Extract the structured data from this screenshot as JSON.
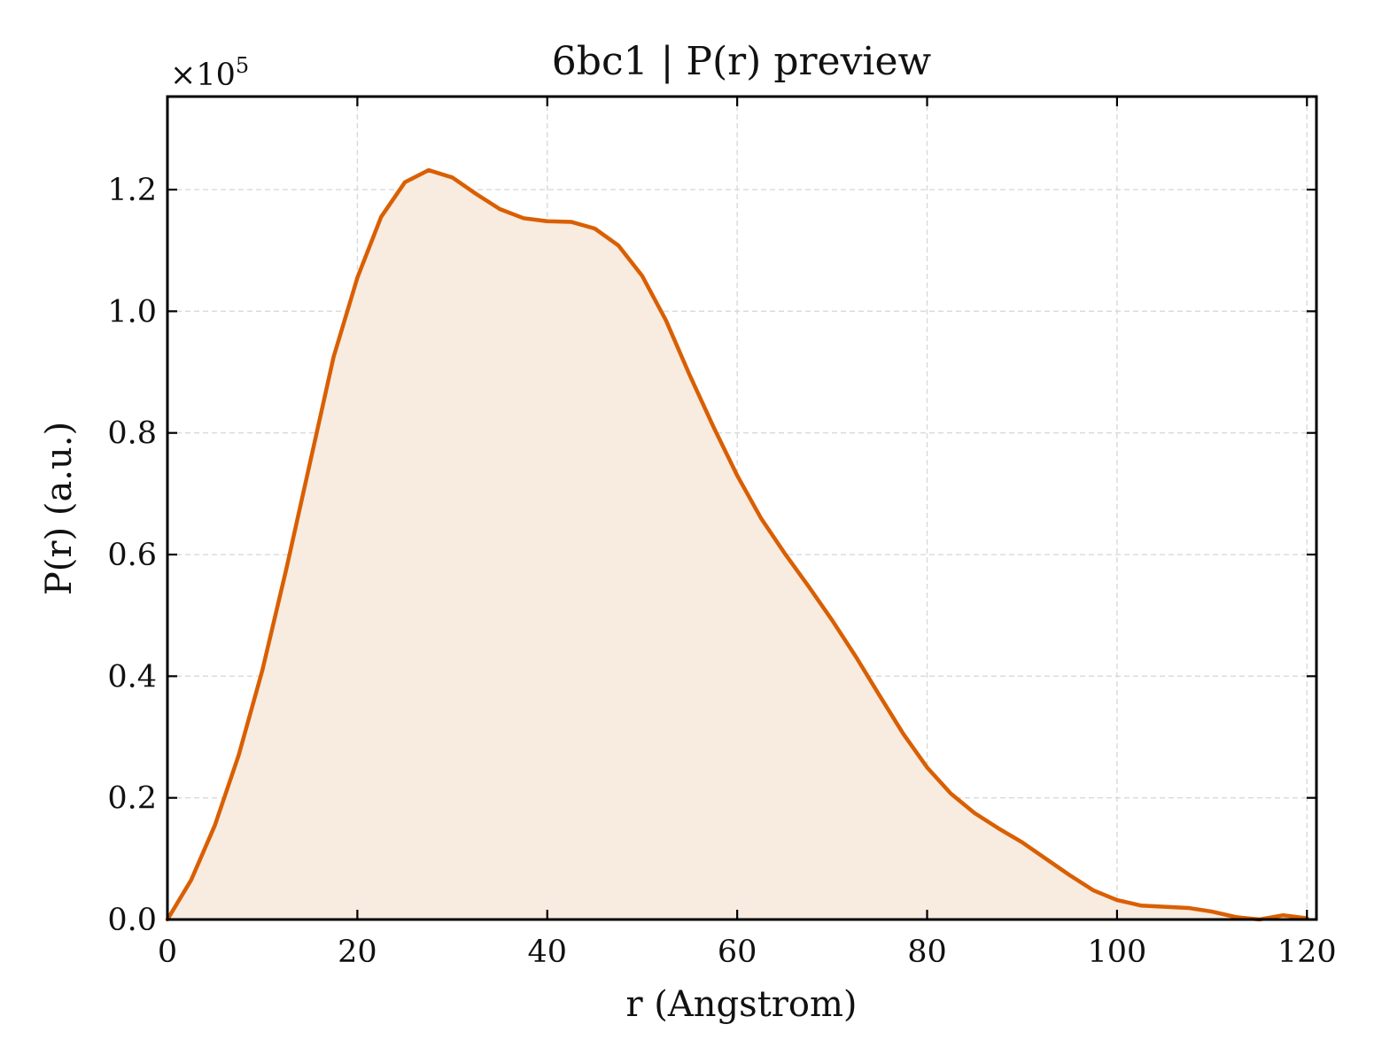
{
  "chart_data": {
    "type": "area",
    "title": "6bc1 | P(r) preview",
    "xlabel": "r (Angstrom)",
    "ylabel": "P(r) (a.u.)",
    "y_multiplier_label": "×10",
    "y_multiplier_exponent": "5",
    "xlim": [
      0,
      121
    ],
    "ylim": [
      0,
      1.353
    ],
    "x_ticks": [
      0,
      20,
      40,
      60,
      80,
      100,
      120
    ],
    "x_tick_labels": [
      "0",
      "20",
      "40",
      "60",
      "80",
      "100",
      "120"
    ],
    "y_ticks": [
      0,
      0.2,
      0.4,
      0.6,
      0.8,
      1.0,
      1.2
    ],
    "y_tick_labels": [
      "0.0",
      "0.2",
      "0.4",
      "0.6",
      "0.8",
      "1.0",
      "1.2"
    ],
    "grid": true,
    "line_color": "#d95f02",
    "fill_color": "#f8ebe0",
    "series": [
      {
        "x": [
          0,
          2.5,
          5,
          7.5,
          10,
          12.5,
          15,
          17.5,
          20,
          22.5,
          25,
          27.5,
          30,
          32.5,
          35,
          37.5,
          40,
          42.5,
          45,
          47.5,
          50,
          52.5,
          55,
          57.5,
          60,
          62.5,
          65,
          67.5,
          70,
          72.5,
          75,
          77.5,
          80,
          82.5,
          85,
          87.5,
          90,
          92.5,
          95,
          97.5,
          100,
          102.5,
          105,
          107.5,
          110,
          112.5,
          115,
          117.5,
          120
        ],
        "y": [
          0.0,
          0.065,
          0.155,
          0.27,
          0.41,
          0.575,
          0.75,
          0.925,
          1.055,
          1.155,
          1.212,
          1.232,
          1.22,
          1.193,
          1.168,
          1.153,
          1.148,
          1.147,
          1.136,
          1.108,
          1.058,
          0.985,
          0.895,
          0.81,
          0.73,
          0.66,
          0.602,
          0.548,
          0.492,
          0.432,
          0.368,
          0.305,
          0.25,
          0.207,
          0.175,
          0.15,
          0.127,
          0.1,
          0.073,
          0.048,
          0.032,
          0.023,
          0.021,
          0.019,
          0.013,
          0.004,
          0.0,
          0.007,
          0.002
        ]
      }
    ]
  }
}
